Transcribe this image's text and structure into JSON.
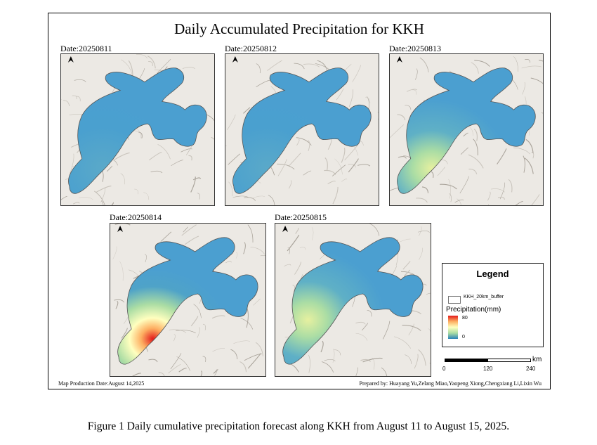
{
  "map": {
    "title": "Daily Accumulated Precipitation for KKH",
    "production_date": "Map Production Date:August 14,2025",
    "prepared_by": "Prepared by: Huayang Yu,Zelang Miao,Yaopeng Xiong,Chengxiang Li,Lixin Wu",
    "north_arrow_icon": "north-arrow-icon",
    "panels": [
      {
        "date": "Date:20250811",
        "peak_level": 0.15,
        "peak_region": "none"
      },
      {
        "date": "Date:20250812",
        "peak_level": 0.2,
        "peak_region": "none"
      },
      {
        "date": "Date:20250813",
        "peak_level": 0.4,
        "peak_region": "south-west"
      },
      {
        "date": "Date:20250814",
        "peak_level": 1.0,
        "peak_region": "south-west"
      },
      {
        "date": "Date:20250815",
        "peak_level": 0.45,
        "peak_region": "west"
      }
    ]
  },
  "legend": {
    "title": "Legend",
    "buffer_label": "KKH_20km_buffer",
    "precip_title": "Precipitation(mm)",
    "max": "80",
    "min": "0",
    "ramp_colors": [
      "#e31a1c",
      "#fdae61",
      "#ffffbf",
      "#abdda4",
      "#2b83ba"
    ]
  },
  "scalebar": {
    "unit": "km",
    "ticks": [
      "0",
      "120",
      "240"
    ]
  },
  "caption": "Figure 1 Daily cumulative precipitation forecast along KKH from August 11 to August 15, 2025."
}
